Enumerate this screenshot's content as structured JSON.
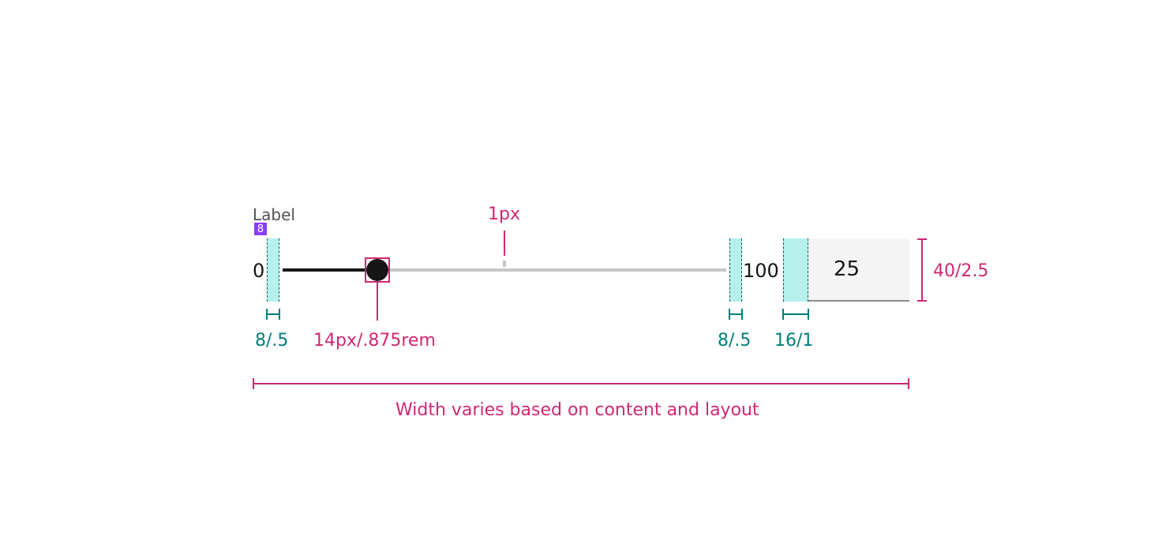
{
  "slider": {
    "label": "Label",
    "min_label": "0",
    "max_label": "100",
    "input_value": "25",
    "value": 25,
    "min": 0,
    "max": 100
  },
  "annotations": {
    "label_spacing_badge": "8",
    "left_spacing": "8/.5",
    "handle_size": "14px/.875rem",
    "track_thickness": "1px",
    "right_spacing": "8/.5",
    "input_spacing": "16/1",
    "input_height": "40/2.5",
    "width_note": "Width varies based on content and layout"
  },
  "colors": {
    "annotation_magenta": "#d12771",
    "spacing_teal": "#007d79",
    "spacing_fill": "#b5f0ec",
    "badge_purple": "#8a3ffc",
    "track_grey": "#c6c6c6",
    "handle_dark": "#161616"
  }
}
